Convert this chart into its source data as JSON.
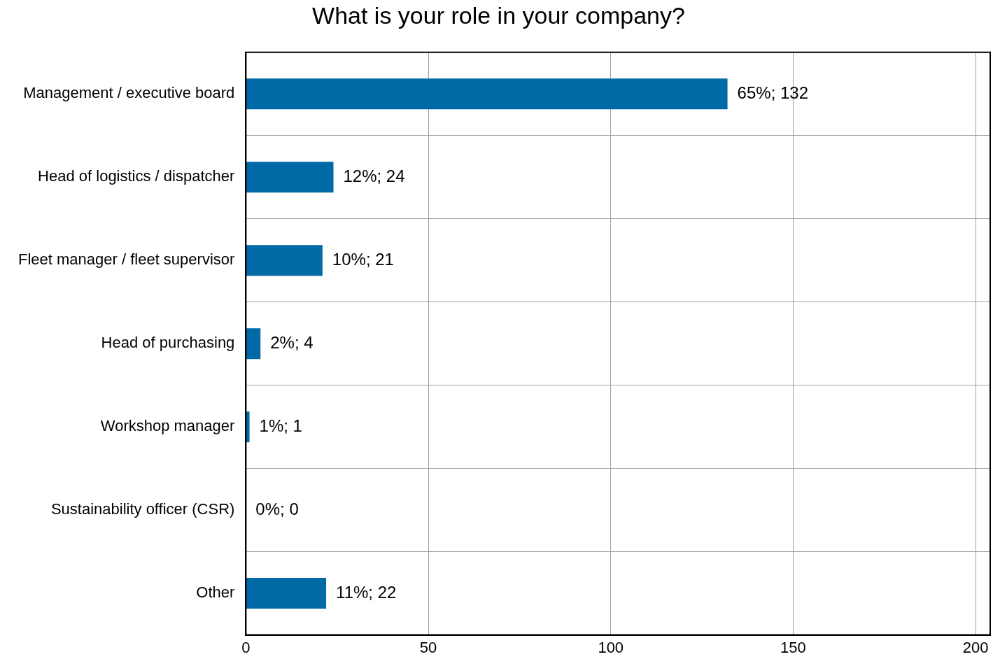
{
  "chart_data": {
    "type": "bar",
    "orientation": "horizontal",
    "title": "What is your role in your company?",
    "categories": [
      "Management / executive board",
      "Head of logistics / dispatcher",
      "Fleet manager / fleet supervisor",
      "Head of purchasing",
      "Workshop manager",
      "Sustainability officer (CSR)",
      "Other"
    ],
    "values": [
      132,
      24,
      21,
      4,
      1,
      0,
      22
    ],
    "value_labels": [
      "65%; 132",
      "12%; 24",
      "10%; 21",
      "2%; 4",
      "1%; 1",
      "0%; 0",
      "11%; 22"
    ],
    "color": "#006aa7",
    "xlim": [
      0,
      204
    ],
    "xticks": [
      0,
      50,
      100,
      150,
      200
    ],
    "grid": true,
    "legend": false
  }
}
